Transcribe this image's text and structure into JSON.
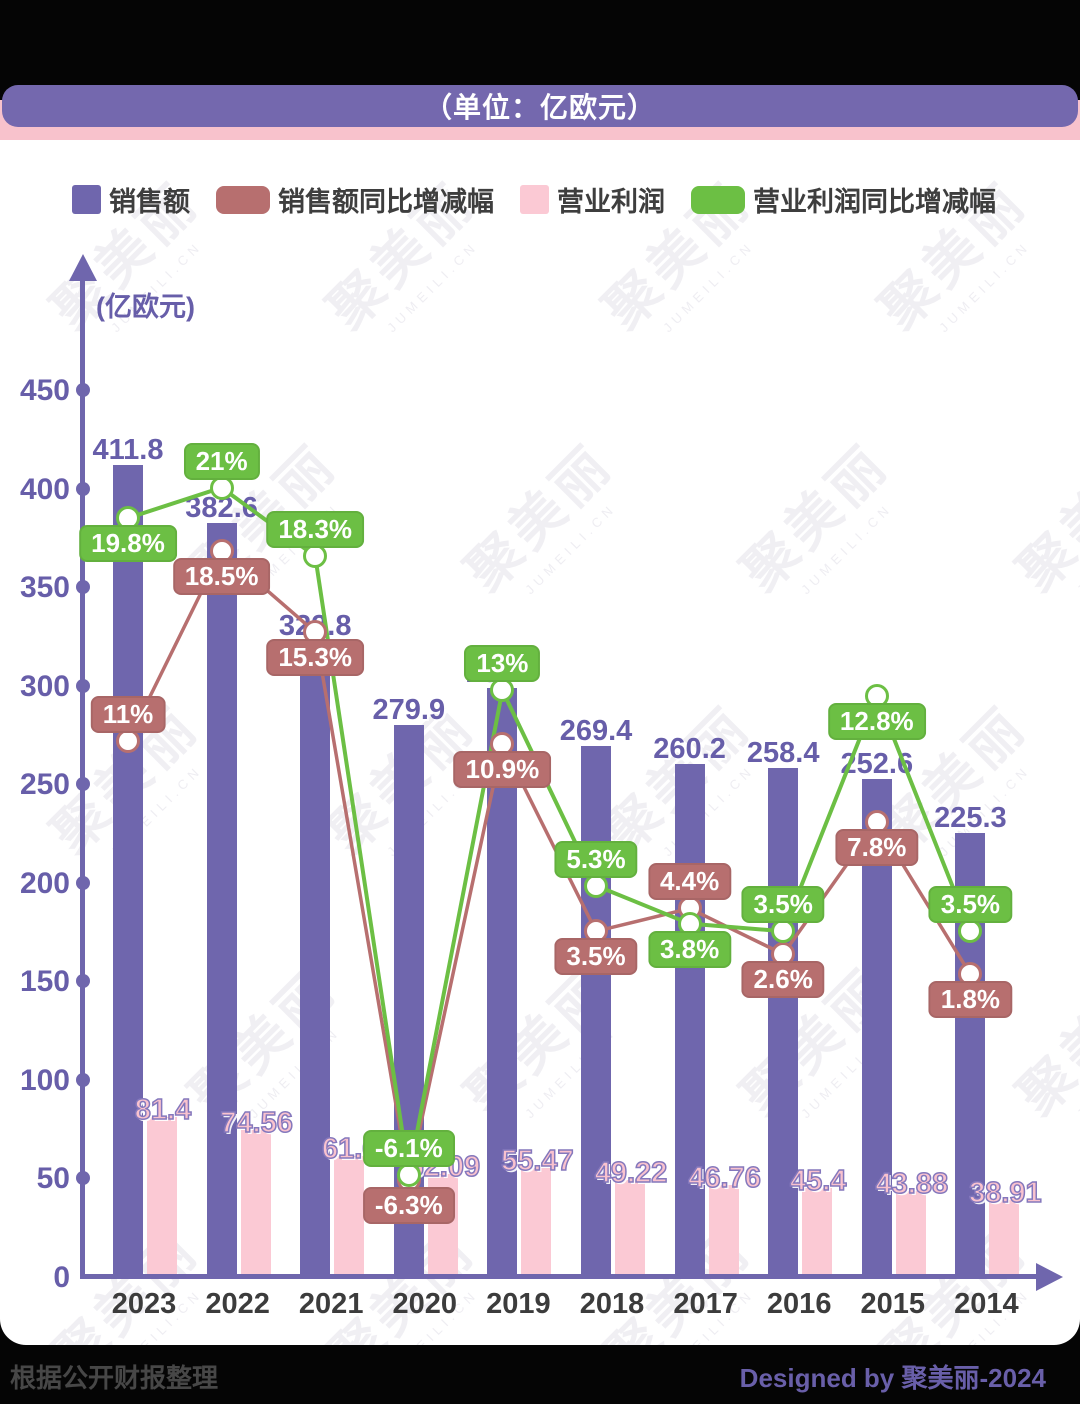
{
  "header": {
    "title": "（单位：亿欧元）"
  },
  "legend": {
    "items": [
      {
        "label": "销售额",
        "swatch": "square",
        "color": "#6F66AD"
      },
      {
        "label": "销售额同比增减幅",
        "swatch": "bubble",
        "color": "#B76F6F"
      },
      {
        "label": "营业利润",
        "swatch": "square",
        "color": "#FBC9D4"
      },
      {
        "label": "营业利润同比增减幅",
        "swatch": "bubble",
        "color": "#6CBF44"
      }
    ]
  },
  "axis": {
    "unit_label": "(亿欧元)",
    "y_ticks": [
      450,
      400,
      350,
      300,
      250,
      200,
      150,
      100,
      50,
      0
    ]
  },
  "chart_data": {
    "type": "bar+line",
    "title": "（单位：亿欧元）",
    "categories": [
      "2023",
      "2022",
      "2021",
      "2020",
      "2019",
      "2018",
      "2017",
      "2016",
      "2015",
      "2014"
    ],
    "ylim": [
      0,
      450
    ],
    "grid": false,
    "legend_position": "top",
    "series": [
      {
        "name": "销售额",
        "type": "bar",
        "color": "#6F66AD",
        "values": [
          411.8,
          382.6,
          322.8,
          279.9,
          298.7,
          269.4,
          260.2,
          258.4,
          252.6,
          225.3
        ],
        "labels": [
          "411.8",
          "382.6",
          "322.8",
          "279.9",
          "298.7",
          "269.4",
          "260.2",
          "258.4",
          "252.6",
          "225.3"
        ]
      },
      {
        "name": "营业利润",
        "type": "bar",
        "color": "#FBC9D4",
        "values": [
          81.4,
          74.56,
          61.6,
          52.09,
          55.47,
          49.22,
          46.76,
          45.4,
          43.88,
          38.91
        ],
        "labels": [
          "81.4",
          "74.56",
          "61.6",
          "52.09",
          "55.47",
          "49.22",
          "46.76",
          "45.4",
          "43.88",
          "38.91"
        ]
      },
      {
        "name": "销售额同比增减幅",
        "type": "line",
        "unit": "%",
        "color": "#B76F6F",
        "values": [
          11,
          18.5,
          15.3,
          -6.3,
          10.9,
          3.5,
          4.4,
          2.6,
          7.8,
          1.8
        ],
        "labels": [
          "11%",
          "18.5%",
          "15.3%",
          "-6.3%",
          "10.9%",
          "3.5%",
          "4.4%",
          "2.6%",
          "7.8%",
          "1.8%"
        ],
        "label_side": [
          "above",
          "below",
          "below",
          "below",
          "below",
          "below",
          "above",
          "below",
          "below",
          "below"
        ]
      },
      {
        "name": "营业利润同比增减幅",
        "type": "line",
        "unit": "%",
        "color": "#6CBF44",
        "values": [
          19.8,
          21,
          18.3,
          -6.1,
          13,
          5.3,
          3.8,
          3.5,
          12.8,
          3.5
        ],
        "labels": [
          "19.8%",
          "21%",
          "18.3%",
          "-6.1%",
          "13%",
          "5.3%",
          "3.8%",
          "3.5%",
          "12.8%",
          "3.5%"
        ],
        "label_side": [
          "below",
          "above",
          "above",
          "above",
          "above",
          "above",
          "below",
          "above",
          "below",
          "above"
        ]
      }
    ]
  },
  "watermark": {
    "text": "聚美丽",
    "subtext": "JUMEILI.CN"
  },
  "footer": {
    "source": "根据公开财报整理",
    "credit": "Designed by 聚美丽-2024"
  }
}
